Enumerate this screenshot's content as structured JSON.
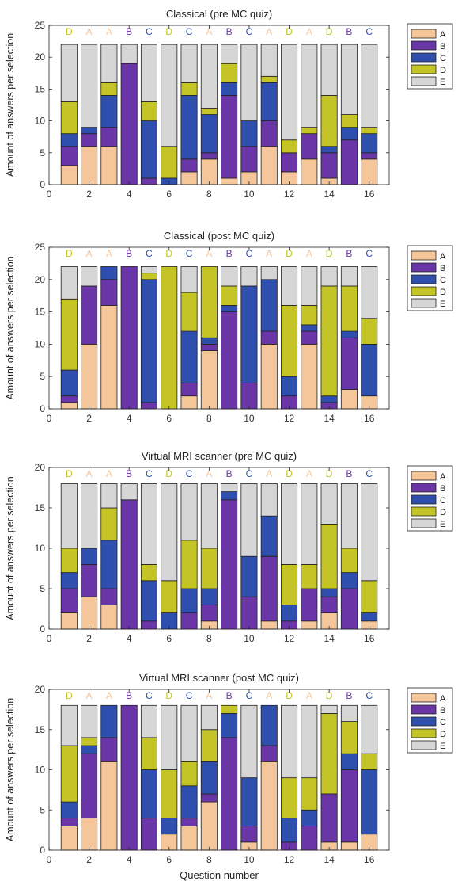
{
  "figure": {
    "xlabel": "Question number",
    "ylabel": "Amount of answers per selection",
    "colors": {
      "A": "#f5c69a",
      "B": "#6a35a6",
      "C": "#2e4fad",
      "D": "#c4c426",
      "E": "#d6d6d6"
    },
    "correct_colors": {
      "A": "#f5c69a",
      "B": "#6a35a6",
      "C": "#2e4fad",
      "D": "#c4c426"
    }
  },
  "chart_data": [
    {
      "type": "bar",
      "stacked": true,
      "title": "Classical (pre MC quiz)",
      "xlabel": "",
      "ylabel": "Amount of answers per selection",
      "xlim": [
        0,
        17
      ],
      "ylim": [
        0,
        25
      ],
      "xticks": [
        "0",
        "2",
        "4",
        "6",
        "8",
        "10",
        "12",
        "14",
        "16"
      ],
      "yticks": [
        "0",
        "5",
        "10",
        "15",
        "20",
        "25"
      ],
      "categories": [
        1,
        2,
        3,
        4,
        5,
        6,
        7,
        8,
        9,
        10,
        11,
        12,
        13,
        14,
        15,
        16
      ],
      "correct_answers": [
        "D",
        "A",
        "A",
        "B",
        "C",
        "D",
        "C",
        "A",
        "B",
        "C",
        "A",
        "D",
        "A",
        "D",
        "B",
        "C"
      ],
      "legend_position": "outside-top-right",
      "series": [
        {
          "name": "A",
          "values": [
            3,
            6,
            6,
            0,
            0,
            0,
            2,
            4,
            1,
            2,
            6,
            2,
            4,
            1,
            0,
            4
          ]
        },
        {
          "name": "B",
          "values": [
            3,
            2,
            3,
            19,
            1,
            0,
            2,
            1,
            13,
            4,
            4,
            3,
            4,
            4,
            7,
            1
          ]
        },
        {
          "name": "C",
          "values": [
            2,
            1,
            5,
            0,
            9,
            1,
            10,
            6,
            2,
            4,
            6,
            0,
            0,
            1,
            2,
            3
          ]
        },
        {
          "name": "D",
          "values": [
            5,
            0,
            2,
            0,
            3,
            5,
            2,
            1,
            3,
            0,
            1,
            2,
            1,
            8,
            2,
            1
          ]
        },
        {
          "name": "E",
          "values": [
            9,
            13,
            6,
            3,
            9,
            16,
            6,
            10,
            3,
            12,
            5,
            15,
            13,
            8,
            11,
            13
          ]
        }
      ]
    },
    {
      "type": "bar",
      "stacked": true,
      "title": "Classical (post MC quiz)",
      "xlabel": "",
      "ylabel": "Amount of answers per selection",
      "xlim": [
        0,
        17
      ],
      "ylim": [
        0,
        25
      ],
      "xticks": [
        "0",
        "2",
        "4",
        "6",
        "8",
        "10",
        "12",
        "14",
        "16"
      ],
      "yticks": [
        "0",
        "5",
        "10",
        "15",
        "20",
        "25"
      ],
      "categories": [
        1,
        2,
        3,
        4,
        5,
        6,
        7,
        8,
        9,
        10,
        11,
        12,
        13,
        14,
        15,
        16
      ],
      "correct_answers": [
        "D",
        "A",
        "A",
        "B",
        "C",
        "D",
        "C",
        "A",
        "B",
        "C",
        "A",
        "D",
        "A",
        "D",
        "B",
        "C"
      ],
      "legend_position": "outside-top-right",
      "series": [
        {
          "name": "A",
          "values": [
            1,
            10,
            16,
            0,
            0,
            0,
            2,
            9,
            0,
            0,
            10,
            0,
            10,
            0,
            3,
            2
          ]
        },
        {
          "name": "B",
          "values": [
            1,
            9,
            4,
            22,
            1,
            0,
            2,
            1,
            15,
            4,
            2,
            2,
            2,
            1,
            8,
            0
          ]
        },
        {
          "name": "C",
          "values": [
            4,
            0,
            2,
            0,
            19,
            0,
            8,
            1,
            1,
            15,
            8,
            3,
            1,
            1,
            1,
            8
          ]
        },
        {
          "name": "D",
          "values": [
            11,
            0,
            0,
            0,
            1,
            22,
            6,
            11,
            3,
            0,
            0,
            11,
            3,
            17,
            7,
            4
          ]
        },
        {
          "name": "E",
          "values": [
            5,
            3,
            0,
            0,
            1,
            0,
            4,
            0,
            3,
            3,
            2,
            6,
            6,
            3,
            3,
            8
          ]
        }
      ]
    },
    {
      "type": "bar",
      "stacked": true,
      "title": "Virtual MRI scanner (pre MC quiz)",
      "xlabel": "",
      "ylabel": "Amount of answers per selection",
      "xlim": [
        0,
        17
      ],
      "ylim": [
        0,
        20
      ],
      "xticks": [
        "0",
        "2",
        "4",
        "6",
        "8",
        "10",
        "12",
        "14",
        "16"
      ],
      "yticks": [
        "0",
        "5",
        "10",
        "15",
        "20"
      ],
      "categories": [
        1,
        2,
        3,
        4,
        5,
        6,
        7,
        8,
        9,
        10,
        11,
        12,
        13,
        14,
        15,
        16
      ],
      "correct_answers": [
        "D",
        "A",
        "A",
        "B",
        "C",
        "D",
        "C",
        "A",
        "B",
        "C",
        "A",
        "D",
        "A",
        "D",
        "B",
        "C"
      ],
      "legend_position": "outside-top-right",
      "series": [
        {
          "name": "A",
          "values": [
            2,
            4,
            3,
            0,
            0,
            0,
            0,
            1,
            0,
            0,
            1,
            0,
            1,
            2,
            0,
            1
          ]
        },
        {
          "name": "B",
          "values": [
            3,
            4,
            2,
            16,
            1,
            0,
            2,
            2,
            16,
            4,
            8,
            1,
            4,
            2,
            5,
            0
          ]
        },
        {
          "name": "C",
          "values": [
            2,
            2,
            6,
            0,
            5,
            2,
            3,
            2,
            1,
            5,
            5,
            2,
            0,
            1,
            2,
            1
          ]
        },
        {
          "name": "D",
          "values": [
            3,
            0,
            4,
            0,
            2,
            4,
            6,
            5,
            0,
            0,
            0,
            5,
            3,
            8,
            3,
            4
          ]
        },
        {
          "name": "E",
          "values": [
            8,
            8,
            3,
            2,
            10,
            12,
            7,
            8,
            1,
            9,
            4,
            10,
            10,
            5,
            8,
            12
          ]
        }
      ]
    },
    {
      "type": "bar",
      "stacked": true,
      "title": "Virtual MRI scanner (post MC quiz)",
      "xlabel": "Question number",
      "ylabel": "Amount of answers per selection",
      "xlim": [
        0,
        17
      ],
      "ylim": [
        0,
        20
      ],
      "xticks": [
        "0",
        "2",
        "4",
        "6",
        "8",
        "10",
        "12",
        "14",
        "16"
      ],
      "yticks": [
        "0",
        "5",
        "10",
        "15",
        "20"
      ],
      "categories": [
        1,
        2,
        3,
        4,
        5,
        6,
        7,
        8,
        9,
        10,
        11,
        12,
        13,
        14,
        15,
        16
      ],
      "correct_answers": [
        "D",
        "A",
        "A",
        "B",
        "C",
        "D",
        "C",
        "A",
        "B",
        "C",
        "A",
        "D",
        "A",
        "D",
        "B",
        "C"
      ],
      "legend_position": "outside-top-right",
      "series": [
        {
          "name": "A",
          "values": [
            3,
            4,
            11,
            0,
            0,
            2,
            3,
            6,
            0,
            1,
            11,
            0,
            0,
            1,
            1,
            2
          ]
        },
        {
          "name": "B",
          "values": [
            1,
            8,
            3,
            18,
            4,
            0,
            1,
            1,
            14,
            2,
            2,
            1,
            3,
            6,
            9,
            0
          ]
        },
        {
          "name": "C",
          "values": [
            2,
            1,
            4,
            0,
            6,
            2,
            4,
            4,
            3,
            6,
            5,
            3,
            2,
            0,
            2,
            8
          ]
        },
        {
          "name": "D",
          "values": [
            7,
            1,
            0,
            0,
            4,
            6,
            3,
            4,
            1,
            0,
            0,
            5,
            4,
            10,
            4,
            2
          ]
        },
        {
          "name": "E",
          "values": [
            5,
            4,
            0,
            0,
            4,
            8,
            7,
            3,
            0,
            9,
            0,
            9,
            9,
            1,
            2,
            6
          ]
        }
      ]
    }
  ]
}
